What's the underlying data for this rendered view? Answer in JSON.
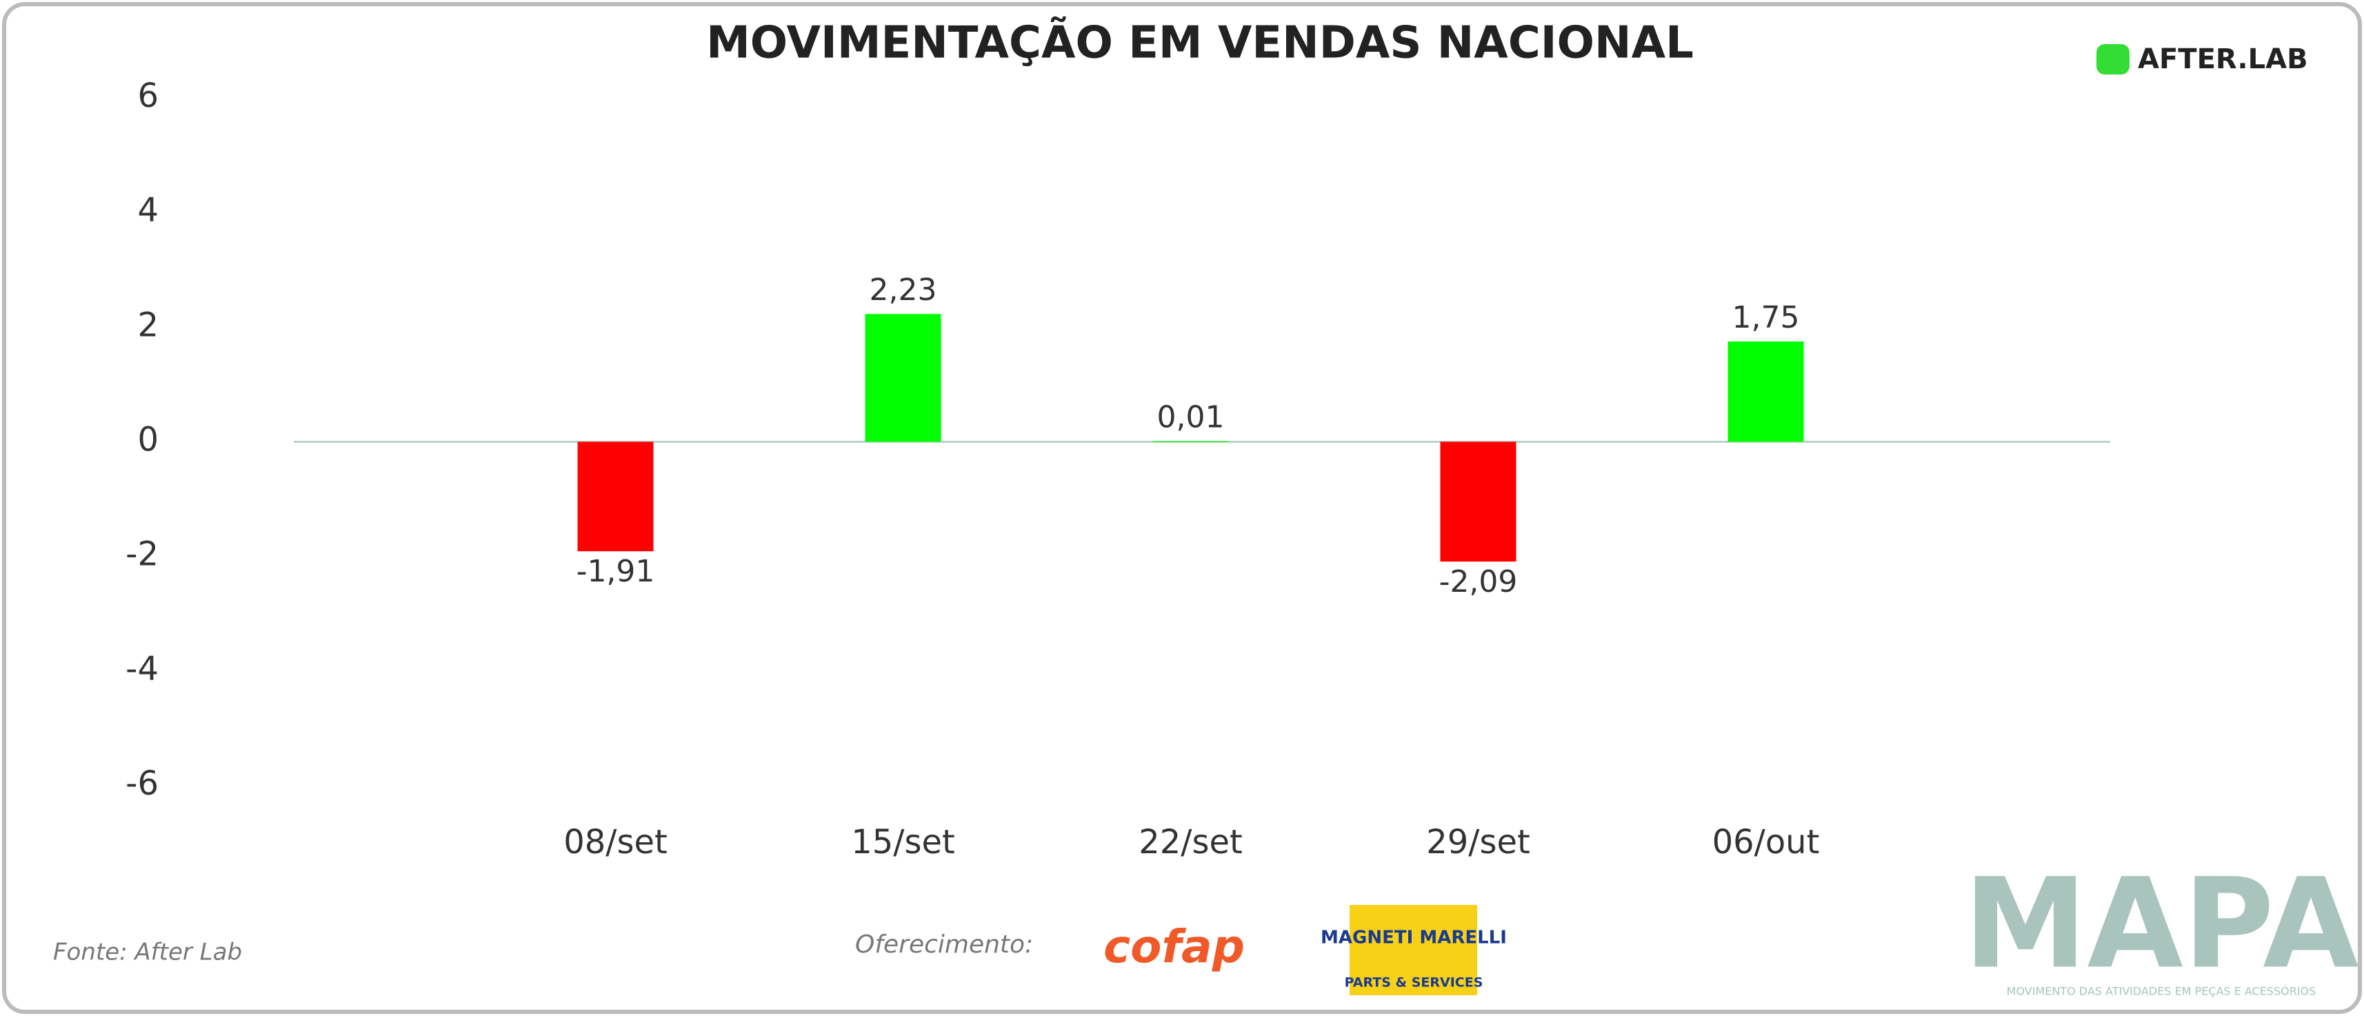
{
  "chart_data": {
    "type": "bar",
    "title": "MOVIMENTAÇÃO EM VENDAS NACIONAL",
    "categories": [
      "08/set",
      "15/set",
      "22/set",
      "29/set",
      "06/out"
    ],
    "values": [
      -1.91,
      2.23,
      0.01,
      -2.09,
      1.75
    ],
    "value_labels": [
      "-1,91",
      "2,23",
      "0,01",
      "-2,09",
      "1,75"
    ],
    "colors": [
      "#ff0000",
      "#00ff00",
      "#00ff00",
      "#ff0000",
      "#00ff00"
    ],
    "ylim": [
      -6,
      6
    ],
    "yticks": [
      -6,
      -4,
      -2,
      0,
      2,
      4,
      6
    ],
    "grid": false
  },
  "footer": {
    "source": "Fonte: After Lab",
    "sponsor_label": "Oferecimento:",
    "sponsors": [
      "cofap",
      "MAGNETI MARELLI",
      "PARTS & SERVICES"
    ],
    "brand": "MAPA",
    "brand_tagline": "MOVIMENTO DAS ATIVIDADES EM PEÇAS E ACESSÓRIOS"
  },
  "header": {
    "logo": "AFTER.LAB"
  }
}
